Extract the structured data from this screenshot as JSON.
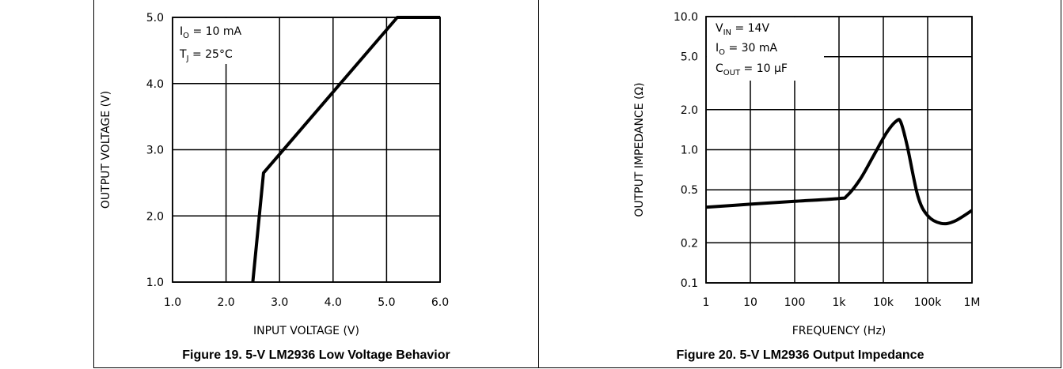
{
  "chart_data": [
    {
      "type": "line",
      "caption": "Figure 19. 5-V LM2936 Low Voltage Behavior",
      "xlabel": "INPUT VOLTAGE (V)",
      "ylabel": "OUTPUT VOLTAGE (V)",
      "xlim": [
        1.0,
        6.0
      ],
      "ylim": [
        1.0,
        5.0
      ],
      "xticks": [
        "1.0",
        "2.0",
        "3.0",
        "4.0",
        "5.0",
        "6.0"
      ],
      "yticks": [
        "1.0",
        "2.0",
        "3.0",
        "4.0",
        "5.0"
      ],
      "annotations": [
        "I_O = 10 mA",
        "T_J = 25°C"
      ],
      "grid": true,
      "series": [
        {
          "x": [
            2.5,
            2.7,
            5.2,
            6.0
          ],
          "y": [
            1.0,
            2.65,
            5.0,
            5.0
          ]
        }
      ]
    },
    {
      "type": "line",
      "caption": "Figure 20. 5-V LM2936 Output Impedance",
      "xlabel": "FREQUENCY (Hz)",
      "ylabel": "OUTPUT IMPEDANCE (Ω)",
      "xscale": "log",
      "yscale": "log",
      "xlim": [
        1,
        1000000
      ],
      "ylim": [
        0.1,
        10.0
      ],
      "xticks": [
        "1",
        "10",
        "100",
        "1k",
        "10k",
        "100k",
        "1M"
      ],
      "yticks": [
        "0.1",
        "0.2",
        "0.5",
        "1.0",
        "2.0",
        "5.0",
        "10.0"
      ],
      "annotations": [
        "V_IN = 14V",
        "I_O = 30 mA",
        "C_OUT = 10 µF"
      ],
      "grid": true,
      "series": [
        {
          "x": [
            1,
            10,
            100,
            1000,
            1500,
            3000,
            6000,
            12000,
            20000,
            25000,
            35000,
            60000,
            100000,
            200000,
            400000,
            1000000
          ],
          "y": [
            0.37,
            0.39,
            0.41,
            0.43,
            0.45,
            0.6,
            0.9,
            1.35,
            1.65,
            1.6,
            1.05,
            0.45,
            0.32,
            0.28,
            0.29,
            0.35
          ]
        }
      ]
    }
  ]
}
